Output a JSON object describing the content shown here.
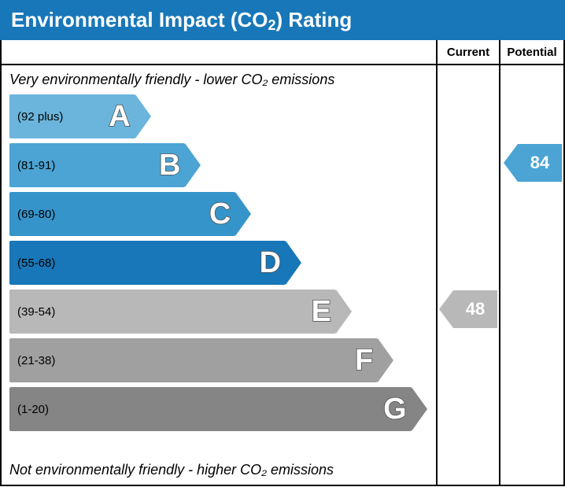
{
  "chart": {
    "title_prefix": "Environmental Impact (CO",
    "title_sub": "2",
    "title_suffix": ") Rating",
    "title_bg": "#1877b8",
    "title_color": "#ffffff",
    "title_fontsize": 26,
    "border_color": "#000000",
    "top_caption": "Very environmentally friendly - lower CO₂ emissions",
    "bottom_caption": "Not environmentally friendly - higher CO₂ emissions",
    "caption_fontsize": 18,
    "col_current_label": "Current",
    "col_potential_label": "Potential",
    "band_height": 56,
    "band_gap": 6,
    "letter_fontsize": 38,
    "range_fontsize": 15,
    "bands": [
      {
        "letter": "A",
        "range": "(92 plus)",
        "width_pct": 30,
        "color": "#6bb5dc"
      },
      {
        "letter": "B",
        "range": "(81-91)",
        "width_pct": 42,
        "color": "#4ba4d4"
      },
      {
        "letter": "C",
        "range": "(69-80)",
        "width_pct": 54,
        "color": "#3594ca"
      },
      {
        "letter": "D",
        "range": "(55-68)",
        "width_pct": 66,
        "color": "#1877b8"
      },
      {
        "letter": "E",
        "range": "(39-54)",
        "width_pct": 78,
        "color": "#b8b8b8"
      },
      {
        "letter": "F",
        "range": "(21-38)",
        "width_pct": 88,
        "color": "#a0a0a0"
      },
      {
        "letter": "G",
        "range": "(1-20)",
        "width_pct": 96,
        "color": "#858585"
      }
    ],
    "current": {
      "value": "48",
      "band_index": 4,
      "color": "#b8b8b8"
    },
    "potential": {
      "value": "84",
      "band_index": 1,
      "color": "#4ba4d4"
    }
  }
}
